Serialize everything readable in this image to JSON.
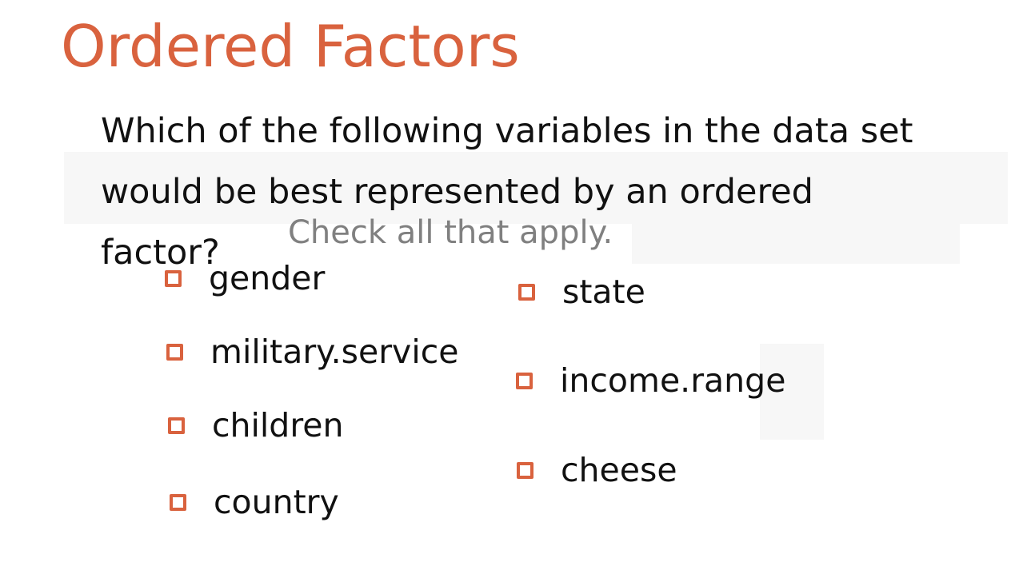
{
  "title": "Ordered Factors",
  "question": "Which of the following variables in the data set would be best represented by an ordered factor?",
  "instruction": "Check all that apply.",
  "colors": {
    "accent": "#d9623e",
    "text": "#111111",
    "muted": "#808080",
    "background": "#ffffff"
  },
  "options": [
    {
      "label": "gender",
      "checked": false
    },
    {
      "label": "military.service",
      "checked": false
    },
    {
      "label": "children",
      "checked": false
    },
    {
      "label": "country",
      "checked": false
    },
    {
      "label": "state",
      "checked": false
    },
    {
      "label": "income.range",
      "checked": false
    },
    {
      "label": "cheese",
      "checked": false
    }
  ]
}
